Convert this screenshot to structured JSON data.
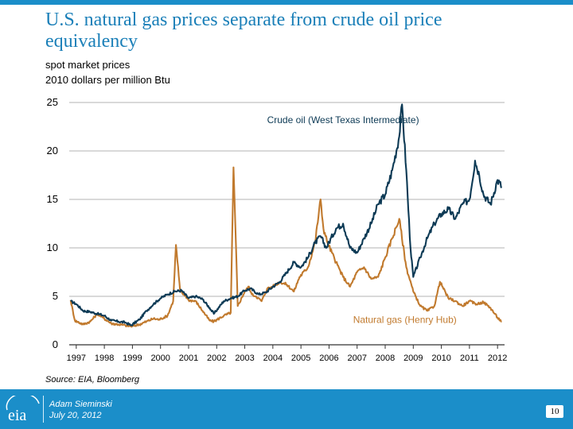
{
  "slide": {
    "title": "U.S. natural gas prices separate from crude oil price equivalency",
    "subtitle1": "spot market prices",
    "subtitle2": "2010 dollars per million Btu",
    "source": "Source:  EIA, Bloomberg",
    "presenter": "Adam Sieminski",
    "date": "July 20, 2012",
    "page_number": "10",
    "logo_text": "eia"
  },
  "colors": {
    "accent": "#1b8ec9",
    "oil": "#0d3a55",
    "gas": "#c17a2e",
    "title": "#1a7fb8"
  },
  "chart_data": {
    "type": "line",
    "title": "",
    "xlabel": "",
    "ylabel": "",
    "ylim": [
      0,
      25
    ],
    "xlim": [
      1996.75,
      2012.25
    ],
    "yticks": [
      "0",
      "5",
      "10",
      "15",
      "20",
      "25"
    ],
    "xticks": [
      "1997",
      "1998",
      "1999",
      "2000",
      "2001",
      "2002",
      "2003",
      "2004",
      "2005",
      "2006",
      "2007",
      "2008",
      "2009",
      "2010",
      "2011",
      "2012"
    ],
    "grid": true,
    "series": [
      {
        "name": "Crude oil (West Texas Intermediate)",
        "color": "#0d3a55",
        "x": [
          1996.8,
          1997.0,
          1997.25,
          1997.5,
          1997.75,
          1998.0,
          1998.25,
          1998.5,
          1998.75,
          1998.95,
          1999.25,
          1999.5,
          1999.75,
          2000.0,
          2000.25,
          2000.5,
          2000.75,
          2001.0,
          2001.25,
          2001.5,
          2001.75,
          2001.9,
          2002.25,
          2002.5,
          2002.75,
          2003.0,
          2003.2,
          2003.5,
          2003.75,
          2004.0,
          2004.25,
          2004.5,
          2004.75,
          2005.0,
          2005.25,
          2005.5,
          2005.7,
          2005.9,
          2006.25,
          2006.5,
          2006.75,
          2007.0,
          2007.25,
          2007.5,
          2007.75,
          2008.0,
          2008.25,
          2008.5,
          2008.6,
          2008.75,
          2008.9,
          2009.0,
          2009.25,
          2009.5,
          2009.75,
          2010.0,
          2010.25,
          2010.5,
          2010.75,
          2011.0,
          2011.2,
          2011.35,
          2011.5,
          2011.75,
          2012.0,
          2012.15
        ],
        "values": [
          4.5,
          4.2,
          3.5,
          3.4,
          3.2,
          3.0,
          2.5,
          2.4,
          2.3,
          2.0,
          2.6,
          3.5,
          4.2,
          4.8,
          5.2,
          5.5,
          5.6,
          4.8,
          5.0,
          4.7,
          3.8,
          3.2,
          4.5,
          4.8,
          5.0,
          5.6,
          5.8,
          5.2,
          5.4,
          6.0,
          6.5,
          7.5,
          8.5,
          8.0,
          9.0,
          10.5,
          11.2,
          10.0,
          12.0,
          12.5,
          10.0,
          9.5,
          11.0,
          12.5,
          14.5,
          15.5,
          18.0,
          21.5,
          24.8,
          18.0,
          10.0,
          7.0,
          9.0,
          11.0,
          12.5,
          13.5,
          14.0,
          13.0,
          14.5,
          15.0,
          19.0,
          17.5,
          15.5,
          14.5,
          17.0,
          16.3
        ],
        "label_year": 2006.5,
        "label_value": 23.2
      },
      {
        "name": "Natural gas (Henry Hub)",
        "color": "#c17a2e",
        "x": [
          1996.8,
          1996.95,
          1997.25,
          1997.5,
          1997.75,
          1997.95,
          1998.25,
          1998.5,
          1998.75,
          1998.95,
          1999.25,
          1999.5,
          1999.75,
          1999.95,
          2000.25,
          2000.45,
          2000.55,
          2000.7,
          2000.9,
          2001.0,
          2001.25,
          2001.5,
          2001.75,
          2001.9,
          2002.25,
          2002.5,
          2002.6,
          2002.75,
          2003.0,
          2003.15,
          2003.25,
          2003.4,
          2003.6,
          2003.8,
          2004.0,
          2004.25,
          2004.5,
          2004.75,
          2004.95,
          2005.25,
          2005.5,
          2005.7,
          2005.8,
          2005.95,
          2006.25,
          2006.5,
          2006.75,
          2007.0,
          2007.25,
          2007.5,
          2007.75,
          2008.0,
          2008.25,
          2008.5,
          2008.75,
          2009.0,
          2009.25,
          2009.5,
          2009.75,
          2009.95,
          2010.25,
          2010.5,
          2010.75,
          2011.0,
          2011.25,
          2011.5,
          2011.75,
          2012.0,
          2012.15
        ],
        "values": [
          4.6,
          2.5,
          2.1,
          2.4,
          3.2,
          2.8,
          2.2,
          2.1,
          2.0,
          1.9,
          2.1,
          2.4,
          2.7,
          2.6,
          3.0,
          4.5,
          10.3,
          5.5,
          5.0,
          4.6,
          4.5,
          3.5,
          2.5,
          2.4,
          3.0,
          3.3,
          18.3,
          4.0,
          5.5,
          6.0,
          5.2,
          5.0,
          4.5,
          5.8,
          6.0,
          6.5,
          6.2,
          5.5,
          7.0,
          8.0,
          10.5,
          15.0,
          12.0,
          10.5,
          8.5,
          7.0,
          6.0,
          7.5,
          8.0,
          6.8,
          7.0,
          9.0,
          11.0,
          13.0,
          8.0,
          5.5,
          4.0,
          3.5,
          4.0,
          6.5,
          4.8,
          4.5,
          4.0,
          4.5,
          4.2,
          4.4,
          3.8,
          2.8,
          2.4
        ],
        "label_year": 2008.7,
        "label_value": 2.6
      }
    ]
  }
}
